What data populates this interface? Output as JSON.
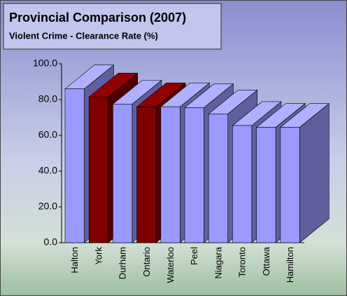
{
  "chart_data": {
    "type": "bar3d",
    "title": "Provincial Comparison (2007)",
    "subtitle": "Violent Crime - Clearance Rate (%)",
    "categories": [
      "Halton",
      "York",
      "Durham",
      "Ontario",
      "Waterloo",
      "Peel",
      "Niagara",
      "Toronto",
      "Ottawa",
      "Hamilton"
    ],
    "values": [
      86,
      81.5,
      77.5,
      76,
      76,
      75.5,
      72,
      65.5,
      64.5,
      64.5
    ],
    "colors": [
      "#9999ff",
      "#800000",
      "#9999ff",
      "#800000",
      "#9999ff",
      "#9999ff",
      "#9999ff",
      "#9999ff",
      "#9999ff",
      "#9999ff"
    ],
    "ylim": [
      0,
      100
    ],
    "yticks": [
      {
        "value": 0,
        "label": "0.0"
      },
      {
        "value": 20,
        "label": "20.0"
      },
      {
        "value": 40,
        "label": "40.0"
      },
      {
        "value": 60,
        "label": "60.0"
      },
      {
        "value": 80,
        "label": "80.0"
      },
      {
        "value": 100,
        "label": "100.0"
      }
    ]
  }
}
